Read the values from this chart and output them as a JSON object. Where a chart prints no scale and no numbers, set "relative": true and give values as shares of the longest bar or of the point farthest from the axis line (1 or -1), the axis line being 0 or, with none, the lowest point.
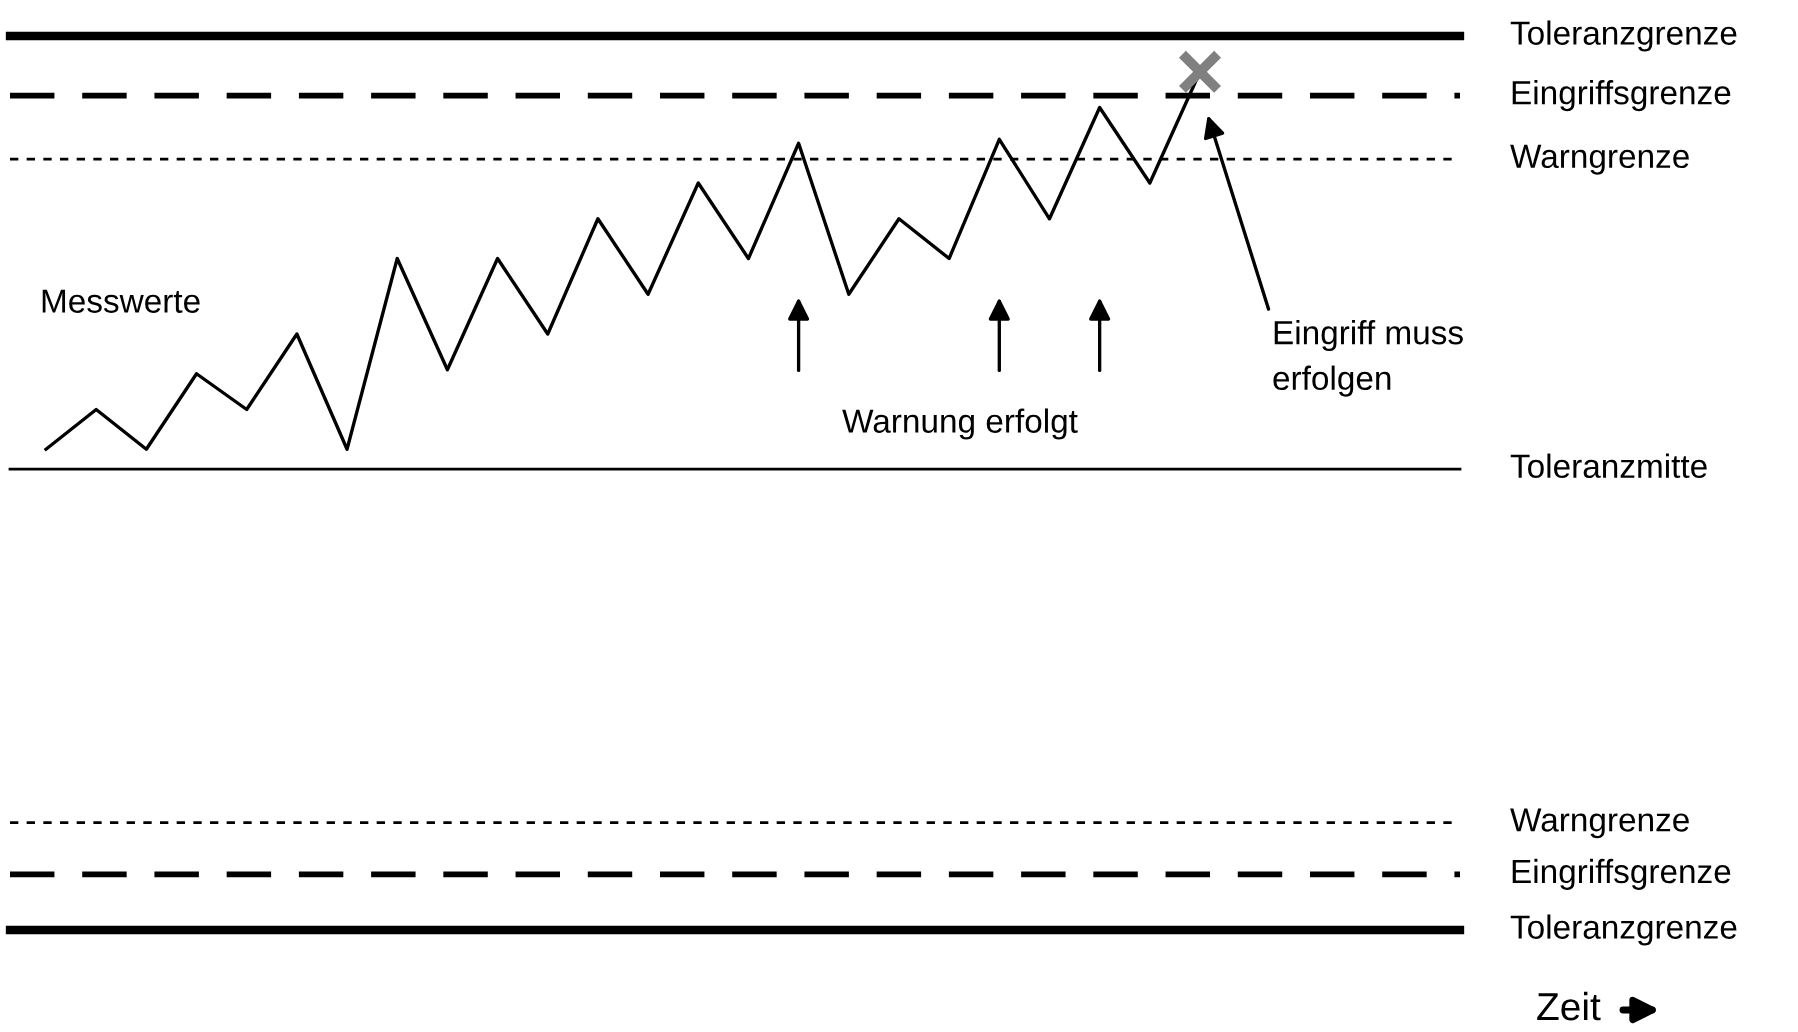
{
  "chart_data": {
    "type": "line",
    "relative": true,
    "categories": [
      null,
      null,
      null,
      null,
      null,
      null,
      null,
      null,
      null,
      null,
      null,
      null,
      null,
      null,
      null,
      null,
      null,
      null,
      null,
      null,
      null,
      null,
      null,
      null
    ],
    "series": [
      {
        "color": "#000000",
        "marker": "none",
        "line_style": "solid",
        "values": [
          0.05,
          0.15,
          0.05,
          0.24,
          0.15,
          0.34,
          0.05,
          0.53,
          0.25,
          0.53,
          0.34,
          0.63,
          0.44,
          0.72,
          0.53,
          0.82,
          0.44,
          0.63,
          0.53,
          0.83,
          0.63,
          0.91,
          0.72,
          1
        ]
      }
    ],
    "ref_lines": [
      {
        "axis": "y",
        "value": 1.09,
        "label": "Toleranzgrenze",
        "color": "#000000",
        "line_style": "solid"
      },
      {
        "axis": "y",
        "value": 0.94,
        "label": "Eingriffsgrenze",
        "color": "#000000",
        "line_style": "dashed"
      },
      {
        "axis": "y",
        "value": 0.78,
        "label": "Warngrenze",
        "color": "#000000",
        "line_style": "dotted"
      },
      {
        "axis": "y",
        "value": 0,
        "label": "Toleranzmitte",
        "color": "#000000",
        "line_style": "solid"
      },
      {
        "axis": "y",
        "value": -0.89,
        "label": "Warngrenze",
        "color": "#000000",
        "line_style": "dotted"
      },
      {
        "axis": "y",
        "value": -1.02,
        "label": "Eingriffsgrenze",
        "color": "#000000",
        "line_style": "dashed"
      },
      {
        "axis": "y",
        "value": -1.16,
        "label": "Toleranzgrenze",
        "color": "#000000",
        "line_style": "solid"
      }
    ],
    "annotations": [
      "Messwerte",
      "Warnung erfolgt",
      "Eingriff muss\nerfolgen",
      "Zeit"
    ],
    "legend": false
  }
}
